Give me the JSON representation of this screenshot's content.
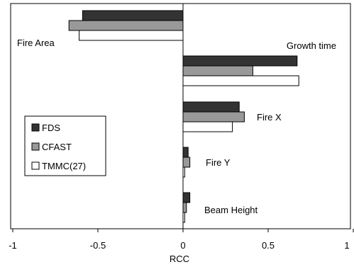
{
  "chart_data": {
    "type": "bar",
    "orientation": "horizontal",
    "xlabel": "RCC",
    "xlim": [
      -1,
      1
    ],
    "xticks": [
      "-1",
      "-0.5",
      "0",
      "0.5",
      "1"
    ],
    "grid": false,
    "legend_placement": "left",
    "categories": [
      "Fire Area",
      "Growth time",
      "Fire X",
      "Fire Y",
      "Beam Height"
    ],
    "series": [
      {
        "name": "FDS",
        "color": "#333333",
        "values": [
          -0.59,
          0.67,
          0.33,
          0.03,
          0.04
        ]
      },
      {
        "name": "CFAST",
        "color": "#999999",
        "values": [
          -0.67,
          0.41,
          0.36,
          0.04,
          0.02
        ]
      },
      {
        "name": "TMMC(27)",
        "color": "#ffffff",
        "values": [
          -0.61,
          0.68,
          0.29,
          0.01,
          0.01
        ]
      }
    ]
  }
}
